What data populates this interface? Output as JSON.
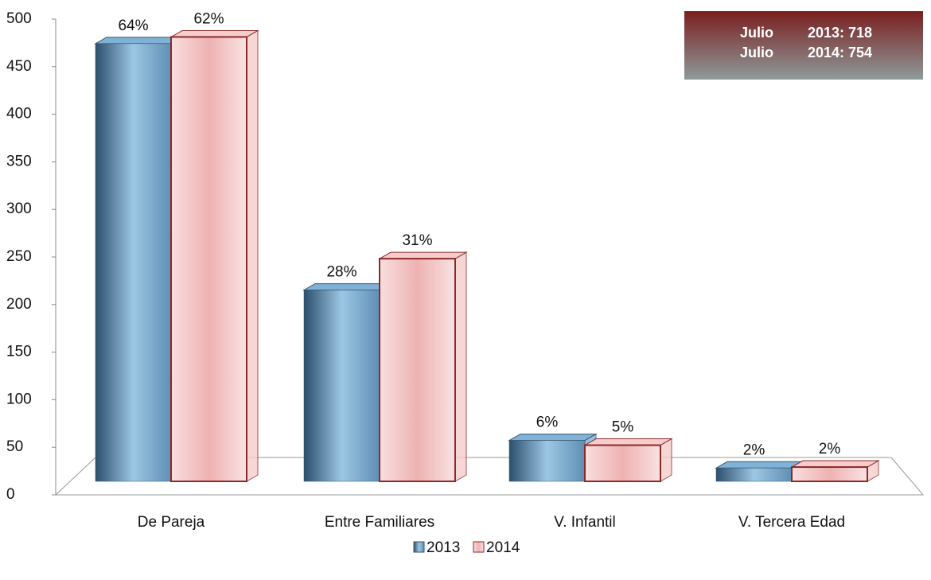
{
  "chart_data": {
    "type": "bar3d",
    "categories": [
      "De Pareja",
      "Entre Familiares",
      "V. Infantil",
      "V. Tercera Edad"
    ],
    "series": [
      {
        "name": "2013",
        "color": "#7fb2d6",
        "values": [
          460,
          201,
          43,
          14
        ],
        "data_labels": [
          "64%",
          "28%",
          "6%",
          "2%"
        ]
      },
      {
        "name": "2014",
        "color": "#f6cccc",
        "values": [
          467,
          234,
          38,
          15
        ],
        "data_labels": [
          "62%",
          "31%",
          "5%",
          "2%"
        ]
      }
    ],
    "ylim": [
      0,
      500
    ],
    "yticks": [
      0,
      50,
      100,
      150,
      200,
      250,
      300,
      350,
      400,
      450,
      500
    ],
    "annotations": [
      [
        "Julio",
        "2013: 718"
      ],
      [
        "Julio",
        "2014: 754"
      ]
    ]
  }
}
